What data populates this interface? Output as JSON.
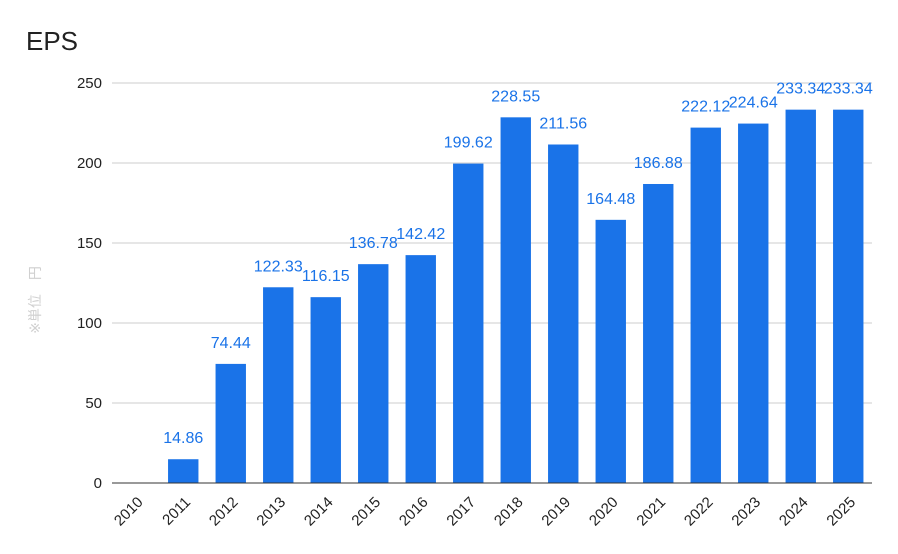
{
  "chart_data": {
    "type": "bar",
    "title": "EPS",
    "xlabel": "",
    "ylabel": "※単位　円",
    "ylim": [
      0,
      250
    ],
    "yticks": [
      0,
      50,
      100,
      150,
      200,
      250
    ],
    "grid": true,
    "categories": [
      "2010",
      "2011",
      "2012",
      "2013",
      "2014",
      "2015",
      "2016",
      "2017",
      "2018",
      "2019",
      "2020",
      "2021",
      "2022",
      "2023",
      "2024",
      "2025"
    ],
    "series": [
      {
        "name": "EPS",
        "color": "#1a73e8",
        "values": [
          null,
          14.86,
          74.44,
          122.33,
          116.15,
          136.78,
          142.42,
          199.62,
          228.55,
          211.56,
          164.48,
          186.88,
          222.12,
          224.64,
          233.34,
          233.34
        ],
        "labels": [
          "",
          "14.86",
          "74.44",
          "122.33",
          "116.15",
          "136.78",
          "142.42",
          "199.62",
          "228.55",
          "211.56",
          "164.48",
          "186.88",
          "222.12",
          "224.64",
          "233.34",
          "233.34"
        ]
      }
    ]
  }
}
